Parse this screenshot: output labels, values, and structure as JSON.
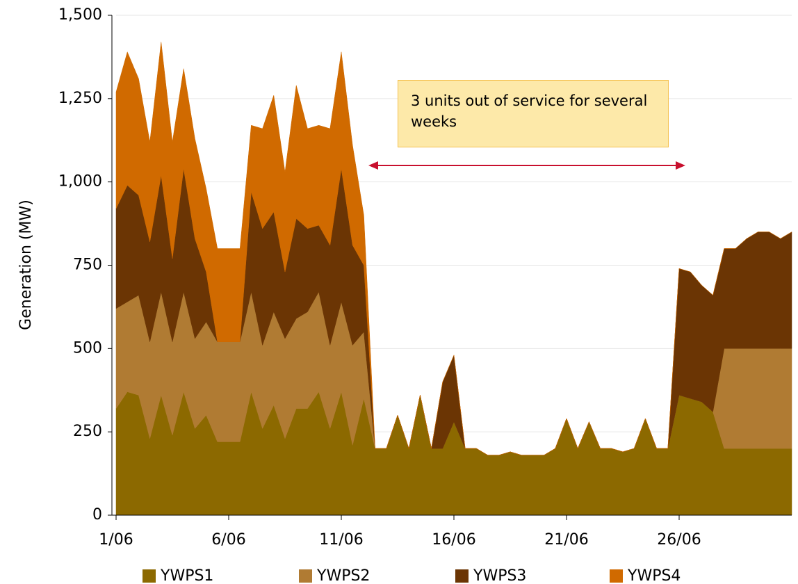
{
  "chart_data": {
    "type": "stacked_area",
    "y_label": "Generation (MW)",
    "annotation": "3 units out of service for several weeks",
    "x": [
      1,
      1.5,
      2,
      2.5,
      3,
      3.5,
      4,
      4.5,
      5,
      5.5,
      6,
      6.5,
      7,
      7.5,
      8,
      8.5,
      9,
      9.5,
      10,
      10.5,
      11,
      11.5,
      12,
      12.5,
      13,
      13.5,
      14,
      14.5,
      15,
      15.5,
      16,
      16.5,
      17,
      17.5,
      18,
      18.5,
      19,
      19.5,
      20,
      20.5,
      21,
      21.5,
      22,
      22.5,
      23,
      23.5,
      24,
      24.5,
      25,
      25.5,
      26,
      26.5,
      27,
      27.5,
      28,
      28.5,
      29,
      29.5,
      30,
      30.5,
      31
    ],
    "xlim": [
      1,
      31
    ],
    "xticks": [
      {
        "value": 1,
        "label": "1/06"
      },
      {
        "value": 6,
        "label": "6/06"
      },
      {
        "value": 11,
        "label": "11/06"
      },
      {
        "value": 16,
        "label": "16/06"
      },
      {
        "value": 21,
        "label": "21/06"
      },
      {
        "value": 26,
        "label": "26/06"
      }
    ],
    "ylim": [
      0,
      1500
    ],
    "yticks": [
      0,
      250,
      500,
      750,
      {
        "value": 1000,
        "label": "1,000"
      },
      {
        "value": 1250,
        "label": "1,250"
      },
      {
        "value": 1500,
        "label": "1,500"
      }
    ],
    "grid": true,
    "legend": "bottom",
    "series": [
      {
        "name": "YWPS1",
        "color": "#8c6900",
        "values": [
          320,
          370,
          360,
          230,
          360,
          240,
          370,
          260,
          300,
          220,
          220,
          220,
          370,
          260,
          330,
          230,
          320,
          320,
          370,
          260,
          370,
          210,
          350,
          200,
          200,
          300,
          200,
          360,
          200,
          200,
          280,
          200,
          200,
          180,
          180,
          190,
          180,
          180,
          180,
          200,
          290,
          200,
          280,
          200,
          200,
          190,
          200,
          290,
          200,
          200,
          360,
          350,
          340,
          310,
          200,
          200,
          200,
          200,
          200,
          200,
          200
        ]
      },
      {
        "name": "YWPS2",
        "color": "#b07b33",
        "values": [
          300,
          270,
          300,
          290,
          310,
          280,
          300,
          270,
          280,
          300,
          300,
          300,
          300,
          250,
          280,
          300,
          270,
          290,
          300,
          250,
          270,
          300,
          200,
          0,
          0,
          0,
          0,
          0,
          0,
          0,
          0,
          0,
          0,
          0,
          0,
          0,
          0,
          0,
          0,
          0,
          0,
          0,
          0,
          0,
          0,
          0,
          0,
          0,
          0,
          0,
          0,
          0,
          0,
          0,
          300,
          300,
          300,
          300,
          300,
          300,
          300
        ]
      },
      {
        "name": "YWPS3",
        "color": "#6b3504",
        "values": [
          300,
          350,
          300,
          300,
          350,
          250,
          370,
          300,
          150,
          0,
          0,
          0,
          300,
          350,
          300,
          200,
          300,
          250,
          200,
          300,
          400,
          300,
          200,
          0,
          0,
          0,
          0,
          0,
          0,
          200,
          200,
          0,
          0,
          0,
          0,
          0,
          0,
          0,
          0,
          0,
          0,
          0,
          0,
          0,
          0,
          0,
          0,
          0,
          0,
          0,
          380,
          380,
          350,
          350,
          300,
          300,
          330,
          350,
          350,
          330,
          350
        ]
      },
      {
        "name": "YWPS4",
        "color": "#d06a00",
        "values": [
          350,
          400,
          350,
          300,
          400,
          350,
          300,
          300,
          250,
          280,
          280,
          280,
          200,
          300,
          350,
          300,
          400,
          300,
          300,
          350,
          350,
          300,
          150,
          0,
          0,
          0,
          0,
          0,
          0,
          0,
          0,
          0,
          0,
          0,
          0,
          0,
          0,
          0,
          0,
          0,
          0,
          0,
          0,
          0,
          0,
          0,
          0,
          0,
          0,
          0,
          0,
          0,
          0,
          0,
          0,
          0,
          0,
          0,
          0,
          0,
          0
        ]
      }
    ]
  }
}
